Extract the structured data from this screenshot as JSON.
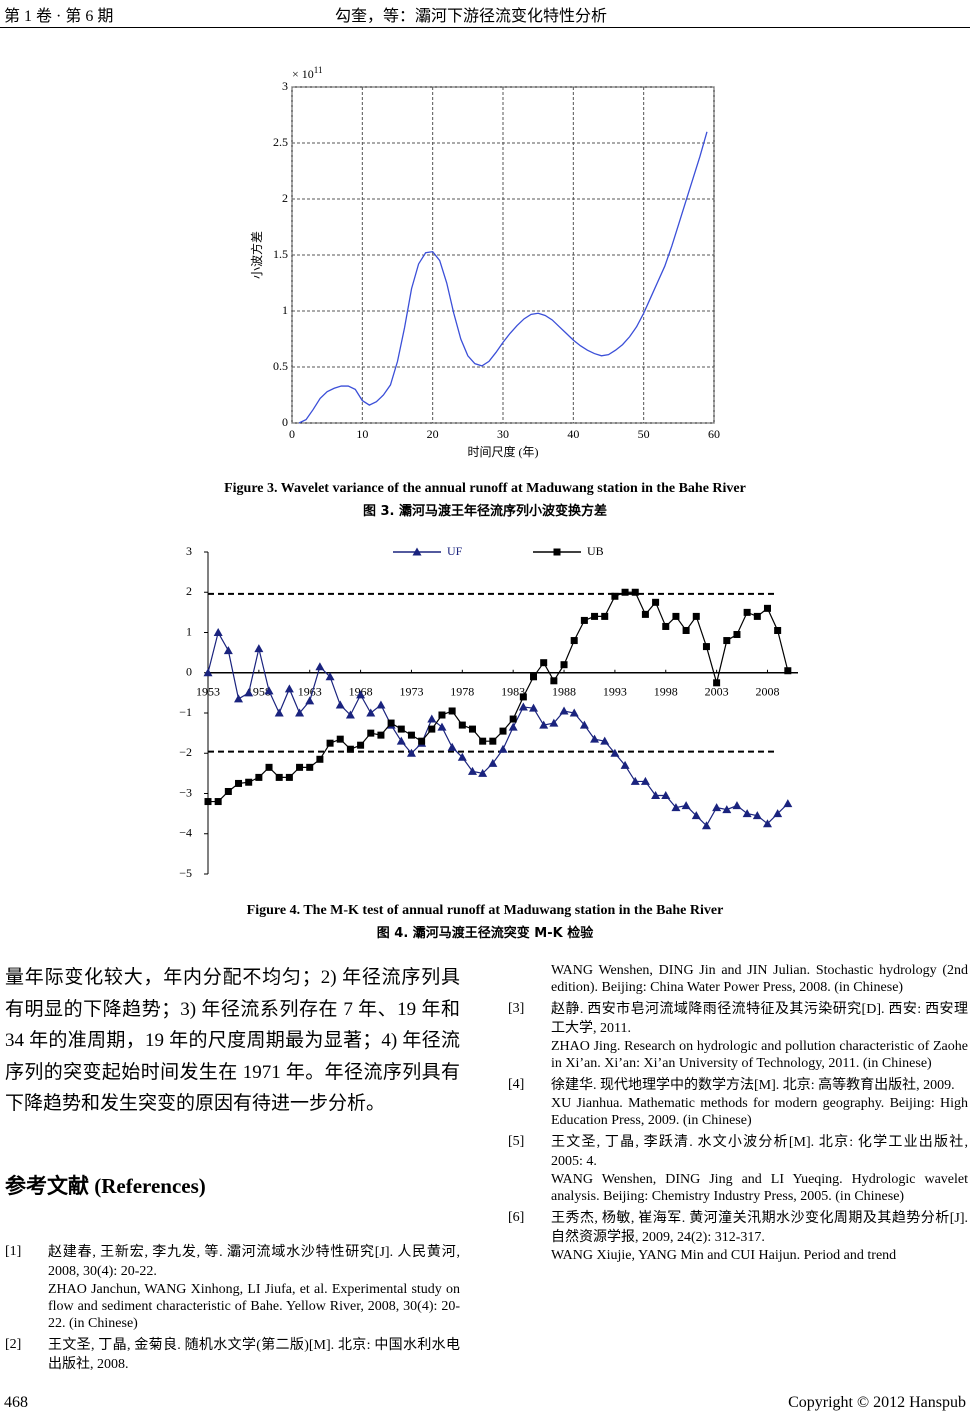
{
  "header": {
    "left": "第 1 卷 · 第 6 期",
    "center": "勾奎，等：灞河下游径流变化特性分析"
  },
  "chart_data": [
    {
      "type": "line",
      "annotation": "× 10",
      "annotation_exponent": "11",
      "ylabel": "小波方差",
      "xlabel": "时间尺度 (年)",
      "xlim": [
        0,
        60
      ],
      "xticks": [
        0,
        10,
        20,
        30,
        40,
        50,
        60
      ],
      "ylim": [
        0,
        3
      ],
      "yticks": [
        0,
        0.5,
        1,
        1.5,
        2,
        2.5,
        3
      ],
      "grid": true,
      "x": [
        1,
        2,
        3,
        4,
        5,
        6,
        7,
        8,
        9,
        10,
        11,
        12,
        13,
        14,
        15,
        16,
        17,
        18,
        19,
        20,
        21,
        22,
        23,
        24,
        25,
        26,
        27,
        28,
        29,
        30,
        31,
        32,
        33,
        34,
        35,
        36,
        37,
        38,
        39,
        40,
        41,
        42,
        43,
        44,
        45,
        46,
        47,
        48,
        49,
        50,
        51,
        52,
        53,
        54,
        55,
        56,
        57,
        58,
        59
      ],
      "series": [
        {
          "color": "#3b4fd8",
          "values": [
            0,
            0.03,
            0.12,
            0.22,
            0.28,
            0.31,
            0.33,
            0.33,
            0.3,
            0.2,
            0.16,
            0.19,
            0.25,
            0.34,
            0.55,
            0.85,
            1.2,
            1.42,
            1.52,
            1.53,
            1.45,
            1.25,
            0.98,
            0.75,
            0.6,
            0.53,
            0.51,
            0.55,
            0.63,
            0.72,
            0.8,
            0.87,
            0.93,
            0.97,
            0.98,
            0.96,
            0.92,
            0.86,
            0.8,
            0.74,
            0.69,
            0.65,
            0.62,
            0.6,
            0.61,
            0.65,
            0.7,
            0.77,
            0.86,
            0.98,
            1.12,
            1.26,
            1.4,
            1.58,
            1.78,
            1.98,
            2.18,
            2.38,
            2.6
          ]
        }
      ],
      "caption_en": "Figure 3. Wavelet variance of the annual runoff at Maduwang station in the Bahe River",
      "caption_zh": "图 3.  灞河马渡王年径流序列小波变换方差"
    },
    {
      "type": "line",
      "legend": "top",
      "xlim": [
        1953,
        2011
      ],
      "xticks": [
        1953,
        1958,
        1963,
        1968,
        1973,
        1978,
        1983,
        1988,
        1993,
        1998,
        2003,
        2008
      ],
      "ylim": [
        -5,
        3
      ],
      "yticks": [
        {
          "value": -5,
          "label": "−5"
        },
        {
          "value": -4,
          "label": "−4"
        },
        {
          "value": -3,
          "label": "−3"
        },
        {
          "value": -2,
          "label": "−2"
        },
        {
          "value": -1,
          "label": "−1"
        },
        0,
        1,
        2,
        3
      ],
      "hlines": [
        1.96,
        -1.96
      ],
      "x": [
        1953,
        1954,
        1955,
        1956,
        1957,
        1958,
        1959,
        1960,
        1961,
        1962,
        1963,
        1964,
        1965,
        1966,
        1967,
        1968,
        1969,
        1970,
        1971,
        1972,
        1973,
        1974,
        1975,
        1976,
        1977,
        1978,
        1979,
        1980,
        1981,
        1982,
        1983,
        1984,
        1985,
        1986,
        1987,
        1988,
        1989,
        1990,
        1991,
        1992,
        1993,
        1994,
        1995,
        1996,
        1997,
        1998,
        1999,
        2000,
        2001,
        2002,
        2003,
        2004,
        2005,
        2006,
        2007,
        2008,
        2009,
        2010
      ],
      "series": [
        {
          "name": "UF",
          "color": "#1a237e",
          "marker": "triangle",
          "values": [
            0,
            1.0,
            0.55,
            -0.65,
            -0.5,
            0.6,
            -0.45,
            -1.0,
            -0.4,
            -1.0,
            -0.7,
            0.15,
            -0.1,
            -0.8,
            -1.05,
            -0.55,
            -1.0,
            -0.8,
            -1.3,
            -1.7,
            -2.0,
            -1.75,
            -1.15,
            -1.35,
            -1.85,
            -2.1,
            -2.45,
            -2.5,
            -2.25,
            -1.9,
            -1.35,
            -0.85,
            -0.88,
            -1.3,
            -1.25,
            -0.95,
            -1.0,
            -1.3,
            -1.65,
            -1.7,
            -2.0,
            -2.3,
            -2.7,
            -2.7,
            -3.05,
            -3.05,
            -3.35,
            -3.3,
            -3.55,
            -3.8,
            -3.35,
            -3.4,
            -3.3,
            -3.5,
            -3.55,
            -3.75,
            -3.5,
            -3.25
          ]
        },
        {
          "name": "UB",
          "color": "#000000",
          "marker": "square",
          "values": [
            -3.2,
            -3.2,
            -2.95,
            -2.75,
            -2.72,
            -2.6,
            -2.35,
            -2.6,
            -2.6,
            -2.35,
            -2.35,
            -2.15,
            -1.75,
            -1.65,
            -1.9,
            -1.8,
            -1.5,
            -1.55,
            -1.25,
            -1.4,
            -1.55,
            -1.7,
            -1.4,
            -1.05,
            -0.95,
            -1.3,
            -1.4,
            -1.7,
            -1.7,
            -1.45,
            -1.15,
            -0.6,
            -0.1,
            0.25,
            -0.2,
            0.2,
            0.8,
            1.3,
            1.4,
            1.4,
            1.9,
            2.0,
            2.0,
            1.45,
            1.75,
            1.15,
            1.4,
            1.05,
            1.4,
            0.65,
            -0.25,
            0.8,
            0.95,
            1.5,
            1.4,
            1.6,
            1.05,
            0.05
          ]
        }
      ],
      "caption_en": "Figure 4. The M-K test of annual runoff at Maduwang station in the Bahe River",
      "caption_zh": "图 4.  灞河马渡王径流突变 M-K 检验"
    }
  ],
  "body": {
    "paragraph": "量年际变化较大，年内分配不均匀；2) 年径流序列具有明显的下降趋势；3) 年径流系列存在 7 年、19 年和 34 年的准周期，19 年的尺度周期最为显著；4) 年径流序列的突变起始时间发生在 1971 年。年径流序列具有下降趋势和发生突变的原因有待进一步分析。"
  },
  "references": {
    "heading": "参考文献  (References)",
    "items": [
      {
        "number": "[1]",
        "zh": "赵建春, 王新宏, 李九发, 等. 灞河流域水沙特性研究[J]. 人民黄河, 2008, 30(4): 20-22.",
        "en": "ZHAO Janchun, WANG Xinhong, LI Jiufa, et al. Experimental study on flow and sediment characteristic of Bahe. Yellow River, 2008, 30(4): 20-22. (in Chinese)"
      },
      {
        "number": "[2]",
        "zh": "王文圣, 丁晶, 金菊良. 随机水文学(第二版)[M]. 北京: 中国水利水电出版社, 2008.",
        "en": "WANG Wenshen, DING Jin and JIN Julian. Stochastic hydrology (2nd edition). Beijing: China Water Power Press, 2008. (in Chinese)"
      },
      {
        "number": "[3]",
        "zh": "赵静. 西安市皂河流域降雨径流特征及其污染研究[D]. 西安: 西安理工大学, 2011.",
        "en": "ZHAO Jing. Research on hydrologic and pollution characteristic of Zaohe in Xi’an. Xi’an: Xi’an University of Technology, 2011. (in Chinese)"
      },
      {
        "number": "[4]",
        "zh": "徐建华. 现代地理学中的数学方法[M]. 北京: 高等教育出版社, 2009.",
        "en": "XU Jianhua. Mathematic methods for modern geography. Beijing: High Education Press, 2009. (in Chinese)"
      },
      {
        "number": "[5]",
        "zh": "王文圣, 丁晶, 李跃清. 水文小波分析[M]. 北京: 化学工业出版社, 2005: 4.",
        "en": "WANG Wenshen, DING Jing and LI Yueqing. Hydrologic wavelet analysis. Beijing: Chemistry Industry Press, 2005. (in Chinese)"
      },
      {
        "number": "[6]",
        "zh": "王秀杰, 杨敏, 崔海军. 黄河潼关汛期水沙变化周期及其趋势分析[J]. 自然资源学报, 2009, 24(2): 312-317.",
        "en": "WANG Xiujie, YANG Min and CUI Haijun. Period and trend"
      }
    ]
  },
  "footer": {
    "page": "468",
    "copyright": "Copyright © 2012 Hanspub"
  }
}
